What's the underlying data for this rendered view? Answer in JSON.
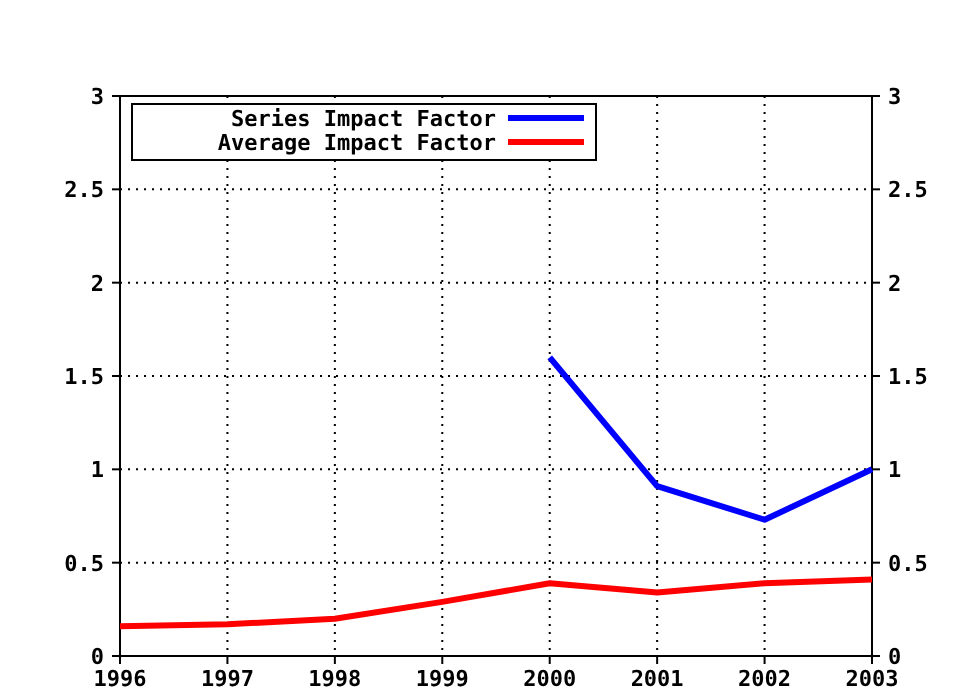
{
  "chart_data": {
    "type": "line",
    "x": [
      1996,
      1997,
      1998,
      1999,
      2000,
      2001,
      2002,
      2003
    ],
    "series": [
      {
        "name": "Series Impact Factor",
        "color": "#0000ff",
        "values": [
          null,
          null,
          null,
          null,
          1.6,
          0.91,
          0.73,
          1.0
        ]
      },
      {
        "name": "Average Impact Factor",
        "color": "#ff0000",
        "values": [
          0.16,
          0.17,
          0.2,
          0.29,
          0.39,
          0.34,
          0.39,
          0.41
        ]
      }
    ],
    "xlim": [
      1996,
      2003
    ],
    "xticks": [
      1996,
      1997,
      1998,
      1999,
      2000,
      2001,
      2002,
      2003
    ],
    "ylim": [
      0,
      3
    ],
    "yticks": [
      0,
      0.5,
      1,
      1.5,
      2,
      2.5,
      3
    ],
    "y2lim": [
      0,
      3
    ],
    "y2ticks": [
      0,
      0.5,
      1,
      1.5,
      2,
      2.5,
      3
    ],
    "grid": true,
    "legend": "top left",
    "marker": "none",
    "line_style": "solid"
  }
}
